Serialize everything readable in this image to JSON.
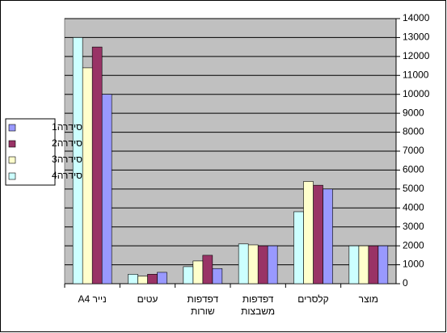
{
  "chart_data": {
    "type": "bar",
    "categories": [
      "מוצר",
      "קלסרים",
      "דפדפות משבצות",
      "דפדפות שורות",
      "עטים",
      "נייר A4"
    ],
    "series": [
      {
        "name": "סידרה1",
        "color": "#9999FF",
        "values": [
          2000,
          5000,
          2000,
          800,
          600,
          10000
        ]
      },
      {
        "name": "סידרה2",
        "color": "#993366",
        "values": [
          2000,
          5200,
          2000,
          1500,
          500,
          12500
        ]
      },
      {
        "name": "סידרה3",
        "color": "#FFFFCC",
        "values": [
          2000,
          5400,
          2050,
          1200,
          400,
          11400
        ]
      },
      {
        "name": "סידרה4",
        "color": "#CCFFFF",
        "values": [
          2000,
          3800,
          2100,
          900,
          500,
          13000
        ]
      }
    ],
    "ylim": [
      0,
      14000
    ],
    "yticks": [
      0,
      1000,
      2000,
      3000,
      4000,
      5000,
      6000,
      7000,
      8000,
      9000,
      10000,
      11000,
      12000,
      13000,
      14000
    ],
    "grid": true,
    "legend": "left",
    "plot_background": "#C0C0C0"
  }
}
